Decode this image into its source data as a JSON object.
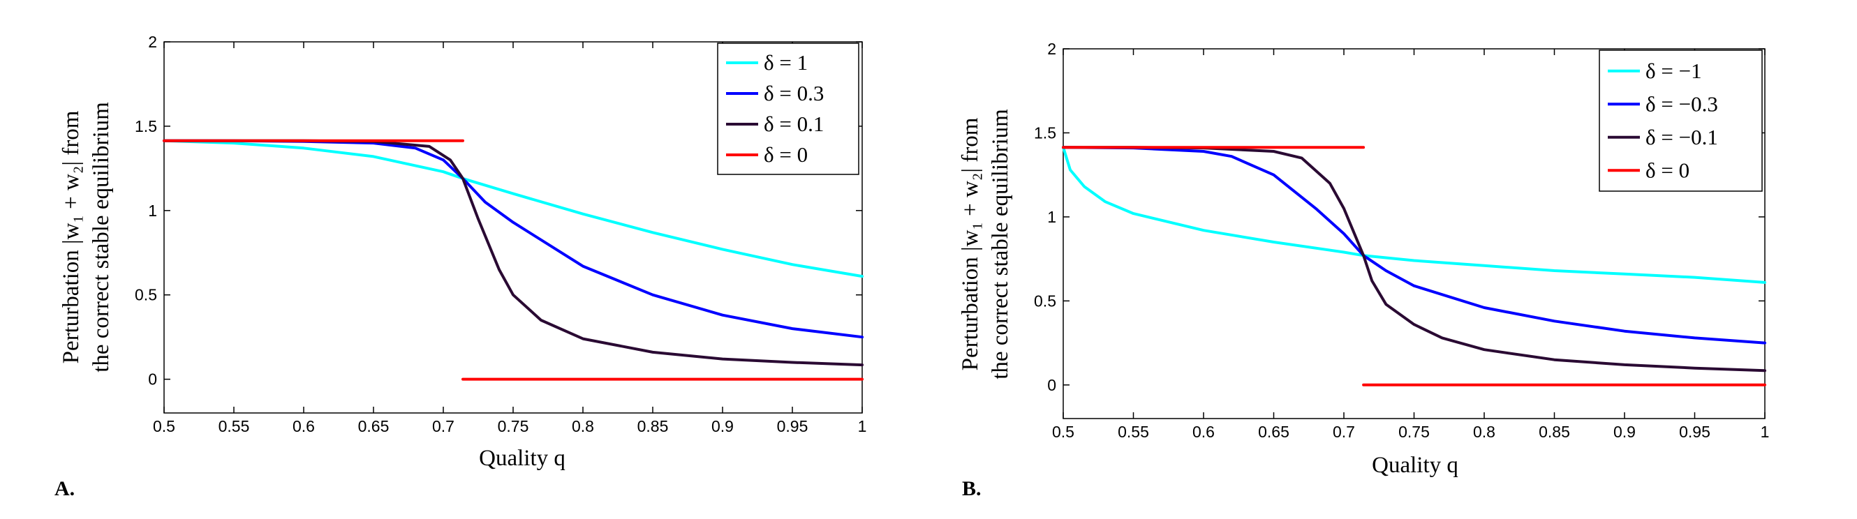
{
  "chart_data": [
    {
      "type": "line",
      "panel_label": "A.",
      "xlabel": "Quality q",
      "ylabel_line1": "Perturbation |w₁ + w₂| from",
      "ylabel_line2": "the correct stable equilibrium",
      "xlim": [
        0.5,
        1
      ],
      "ylim": [
        -0.2,
        2
      ],
      "xticks": [
        0.5,
        0.55,
        0.6,
        0.65,
        0.7,
        0.75,
        0.8,
        0.85,
        0.9,
        0.95,
        1
      ],
      "xtick_labels": [
        "0.5",
        "0.55",
        "0.6",
        "0.65",
        "0.7",
        "0.75",
        "0.8",
        "0.85",
        "0.9",
        "0.95",
        "1"
      ],
      "yticks": [
        0,
        0.5,
        1,
        1.5,
        2
      ],
      "ytick_labels": [
        "0",
        "0.5",
        "1",
        "1.5",
        "2"
      ],
      "grid": false,
      "legend_position": "top-right",
      "series": [
        {
          "name": "δ = 1",
          "color": "#00ffff",
          "x": [
            0.5,
            0.55,
            0.6,
            0.65,
            0.7,
            0.714,
            0.75,
            0.8,
            0.85,
            0.9,
            0.95,
            1
          ],
          "y": [
            1.414,
            1.4,
            1.37,
            1.32,
            1.23,
            1.19,
            1.1,
            0.98,
            0.87,
            0.77,
            0.68,
            0.61
          ]
        },
        {
          "name": "δ = 0.3",
          "color": "#0000ff",
          "x": [
            0.5,
            0.55,
            0.6,
            0.65,
            0.68,
            0.7,
            0.714,
            0.73,
            0.75,
            0.8,
            0.85,
            0.9,
            0.95,
            1
          ],
          "y": [
            1.414,
            1.413,
            1.41,
            1.4,
            1.37,
            1.3,
            1.19,
            1.05,
            0.93,
            0.67,
            0.5,
            0.38,
            0.3,
            0.25
          ]
        },
        {
          "name": "δ = 0.1",
          "color": "#2a0a33",
          "x": [
            0.5,
            0.55,
            0.6,
            0.65,
            0.69,
            0.705,
            0.714,
            0.725,
            0.74,
            0.75,
            0.77,
            0.8,
            0.85,
            0.9,
            0.95,
            1
          ],
          "y": [
            1.414,
            1.414,
            1.414,
            1.41,
            1.38,
            1.3,
            1.19,
            0.95,
            0.65,
            0.5,
            0.35,
            0.24,
            0.16,
            0.12,
            0.1,
            0.085
          ]
        },
        {
          "name": "δ = 0",
          "color": "#ff0000",
          "segments": [
            {
              "x": [
                0.5,
                0.714
              ],
              "y": [
                1.414,
                1.414
              ]
            },
            {
              "x": [
                0.714,
                1
              ],
              "y": [
                0,
                0
              ]
            }
          ]
        }
      ]
    },
    {
      "type": "line",
      "panel_label": "B.",
      "xlabel": "Quality q",
      "ylabel_line1": "Perturbation |w₁ + w₂| from",
      "ylabel_line2": "the correct stable equilibrium",
      "xlim": [
        0.5,
        1
      ],
      "ylim": [
        -0.2,
        2
      ],
      "xticks": [
        0.5,
        0.55,
        0.6,
        0.65,
        0.7,
        0.75,
        0.8,
        0.85,
        0.9,
        0.95,
        1
      ],
      "xtick_labels": [
        "0.5",
        "0.55",
        "0.6",
        "0.65",
        "0.7",
        "0.75",
        "0.8",
        "0.85",
        "0.9",
        "0.95",
        "1"
      ],
      "yticks": [
        0,
        0.5,
        1,
        1.5,
        2
      ],
      "ytick_labels": [
        "0",
        "0.5",
        "1",
        "1.5",
        "2"
      ],
      "grid": false,
      "legend_position": "top-right",
      "series": [
        {
          "name": "δ = −1",
          "color": "#00ffff",
          "x": [
            0.5,
            0.505,
            0.515,
            0.53,
            0.55,
            0.6,
            0.65,
            0.7,
            0.714,
            0.75,
            0.8,
            0.85,
            0.9,
            0.95,
            1
          ],
          "y": [
            1.414,
            1.28,
            1.18,
            1.09,
            1.02,
            0.92,
            0.85,
            0.79,
            0.77,
            0.74,
            0.71,
            0.68,
            0.66,
            0.64,
            0.61
          ]
        },
        {
          "name": "δ = −0.3",
          "color": "#0000ff",
          "x": [
            0.5,
            0.55,
            0.6,
            0.62,
            0.65,
            0.68,
            0.7,
            0.714,
            0.73,
            0.75,
            0.8,
            0.85,
            0.9,
            0.95,
            1
          ],
          "y": [
            1.414,
            1.41,
            1.39,
            1.36,
            1.25,
            1.05,
            0.9,
            0.77,
            0.68,
            0.59,
            0.46,
            0.38,
            0.32,
            0.28,
            0.25
          ]
        },
        {
          "name": "δ = −0.1",
          "color": "#2a0a33",
          "x": [
            0.5,
            0.55,
            0.6,
            0.65,
            0.67,
            0.69,
            0.7,
            0.714,
            0.72,
            0.73,
            0.75,
            0.77,
            0.8,
            0.85,
            0.9,
            0.95,
            1
          ],
          "y": [
            1.414,
            1.414,
            1.41,
            1.39,
            1.35,
            1.2,
            1.05,
            0.77,
            0.62,
            0.48,
            0.36,
            0.28,
            0.21,
            0.15,
            0.12,
            0.1,
            0.085
          ]
        },
        {
          "name": "δ = 0",
          "color": "#ff0000",
          "segments": [
            {
              "x": [
                0.5,
                0.714
              ],
              "y": [
                1.414,
                1.414
              ]
            },
            {
              "x": [
                0.714,
                1
              ],
              "y": [
                0,
                0
              ]
            }
          ]
        }
      ]
    }
  ]
}
